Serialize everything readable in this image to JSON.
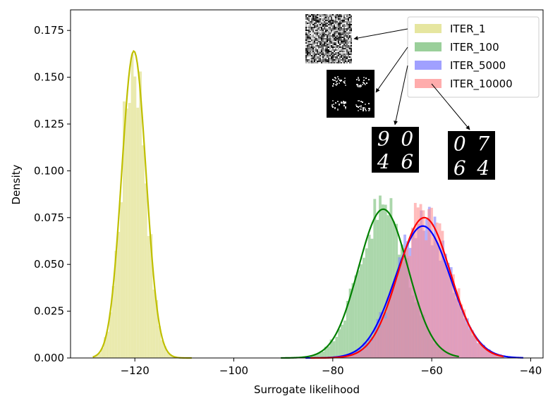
{
  "chart_data": {
    "type": "histogram-kde",
    "xlabel": "Surrogate likelihood",
    "ylabel": "Density",
    "xlim": [
      -133,
      -37.5
    ],
    "ylim": [
      0,
      0.186
    ],
    "xticks": [
      -120,
      -100,
      -80,
      -60,
      -40
    ],
    "yticks": [
      0.0,
      0.025,
      0.05,
      0.075,
      0.1,
      0.125,
      0.15,
      0.175
    ],
    "xtick_labels": [
      "−120",
      "−100",
      "−80",
      "−60",
      "−40"
    ],
    "ytick_labels": [
      "0.000",
      "0.025",
      "0.050",
      "0.075",
      "0.100",
      "0.125",
      "0.150",
      "0.175"
    ],
    "legend_position": "top-right",
    "series": [
      {
        "name": "ITER_1",
        "mean": -120.2,
        "sd": 2.45,
        "peak": 0.164,
        "range": [
          -128.5,
          -108.5
        ],
        "bar_color": "#e6e6a0",
        "line_color": "#bfbf00",
        "bar_alpha": 0.85
      },
      {
        "name": "ITER_100",
        "mean": -69.8,
        "sd": 5.0,
        "peak": 0.0795,
        "range": [
          -90.5,
          -54.5
        ],
        "bar_color": "#8fca8f",
        "line_color": "#008000",
        "bar_alpha": 0.75
      },
      {
        "name": "ITER_5000",
        "mean": -61.8,
        "sd": 5.6,
        "peak": 0.0705,
        "range": [
          -85.5,
          -41.5
        ],
        "bar_color": "#8080ff",
        "line_color": "#0000ff",
        "bar_alpha": 0.6
      },
      {
        "name": "ITER_10000",
        "mean": -61.5,
        "sd": 5.3,
        "peak": 0.075,
        "range": [
          -84.5,
          -45.5
        ],
        "bar_color": "#ff9090",
        "line_color": "#ff0000",
        "bar_alpha": 0.6
      }
    ],
    "annotations": [
      {
        "series": "ITER_1",
        "sample_type": "noise",
        "digits": []
      },
      {
        "series": "ITER_100",
        "sample_type": "blurry",
        "digits": []
      },
      {
        "series": "ITER_5000",
        "sample_type": "digits",
        "digits": [
          "9",
          "0",
          "4",
          "6"
        ]
      },
      {
        "series": "ITER_10000",
        "sample_type": "digits",
        "digits": [
          "0",
          "7",
          "6",
          "4"
        ]
      }
    ]
  }
}
